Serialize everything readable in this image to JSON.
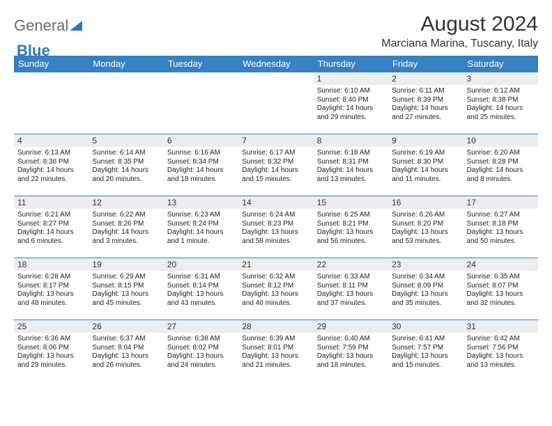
{
  "brand": {
    "part1": "General",
    "part2": "Blue"
  },
  "title": "August 2024",
  "location": "Marciana Marina, Tuscany, Italy",
  "colors": {
    "header_bg": "#3681c2",
    "header_text": "#ffffff",
    "daynum_bg": "#ededed",
    "border": "#3681c2"
  },
  "weekday_labels": [
    "Sunday",
    "Monday",
    "Tuesday",
    "Wednesday",
    "Thursday",
    "Friday",
    "Saturday"
  ],
  "weeks": [
    [
      {
        "n": "",
        "sr": "",
        "ss": "",
        "dl": ""
      },
      {
        "n": "",
        "sr": "",
        "ss": "",
        "dl": ""
      },
      {
        "n": "",
        "sr": "",
        "ss": "",
        "dl": ""
      },
      {
        "n": "",
        "sr": "",
        "ss": "",
        "dl": ""
      },
      {
        "n": "1",
        "sr": "Sunrise: 6:10 AM",
        "ss": "Sunset: 8:40 PM",
        "dl": "Daylight: 14 hours and 29 minutes."
      },
      {
        "n": "2",
        "sr": "Sunrise: 6:11 AM",
        "ss": "Sunset: 8:39 PM",
        "dl": "Daylight: 14 hours and 27 minutes."
      },
      {
        "n": "3",
        "sr": "Sunrise: 6:12 AM",
        "ss": "Sunset: 8:38 PM",
        "dl": "Daylight: 14 hours and 25 minutes."
      }
    ],
    [
      {
        "n": "4",
        "sr": "Sunrise: 6:13 AM",
        "ss": "Sunset: 8:36 PM",
        "dl": "Daylight: 14 hours and 22 minutes."
      },
      {
        "n": "5",
        "sr": "Sunrise: 6:14 AM",
        "ss": "Sunset: 8:35 PM",
        "dl": "Daylight: 14 hours and 20 minutes."
      },
      {
        "n": "6",
        "sr": "Sunrise: 6:16 AM",
        "ss": "Sunset: 8:34 PM",
        "dl": "Daylight: 14 hours and 18 minutes."
      },
      {
        "n": "7",
        "sr": "Sunrise: 6:17 AM",
        "ss": "Sunset: 8:32 PM",
        "dl": "Daylight: 14 hours and 15 minutes."
      },
      {
        "n": "8",
        "sr": "Sunrise: 6:18 AM",
        "ss": "Sunset: 8:31 PM",
        "dl": "Daylight: 14 hours and 13 minutes."
      },
      {
        "n": "9",
        "sr": "Sunrise: 6:19 AM",
        "ss": "Sunset: 8:30 PM",
        "dl": "Daylight: 14 hours and 11 minutes."
      },
      {
        "n": "10",
        "sr": "Sunrise: 6:20 AM",
        "ss": "Sunset: 8:28 PM",
        "dl": "Daylight: 14 hours and 8 minutes."
      }
    ],
    [
      {
        "n": "11",
        "sr": "Sunrise: 6:21 AM",
        "ss": "Sunset: 8:27 PM",
        "dl": "Daylight: 14 hours and 6 minutes."
      },
      {
        "n": "12",
        "sr": "Sunrise: 6:22 AM",
        "ss": "Sunset: 8:26 PM",
        "dl": "Daylight: 14 hours and 3 minutes."
      },
      {
        "n": "13",
        "sr": "Sunrise: 6:23 AM",
        "ss": "Sunset: 8:24 PM",
        "dl": "Daylight: 14 hours and 1 minute."
      },
      {
        "n": "14",
        "sr": "Sunrise: 6:24 AM",
        "ss": "Sunset: 8:23 PM",
        "dl": "Daylight: 13 hours and 58 minutes."
      },
      {
        "n": "15",
        "sr": "Sunrise: 6:25 AM",
        "ss": "Sunset: 8:21 PM",
        "dl": "Daylight: 13 hours and 56 minutes."
      },
      {
        "n": "16",
        "sr": "Sunrise: 6:26 AM",
        "ss": "Sunset: 8:20 PM",
        "dl": "Daylight: 13 hours and 53 minutes."
      },
      {
        "n": "17",
        "sr": "Sunrise: 6:27 AM",
        "ss": "Sunset: 8:18 PM",
        "dl": "Daylight: 13 hours and 50 minutes."
      }
    ],
    [
      {
        "n": "18",
        "sr": "Sunrise: 6:28 AM",
        "ss": "Sunset: 8:17 PM",
        "dl": "Daylight: 13 hours and 48 minutes."
      },
      {
        "n": "19",
        "sr": "Sunrise: 6:29 AM",
        "ss": "Sunset: 8:15 PM",
        "dl": "Daylight: 13 hours and 45 minutes."
      },
      {
        "n": "20",
        "sr": "Sunrise: 6:31 AM",
        "ss": "Sunset: 8:14 PM",
        "dl": "Daylight: 13 hours and 43 minutes."
      },
      {
        "n": "21",
        "sr": "Sunrise: 6:32 AM",
        "ss": "Sunset: 8:12 PM",
        "dl": "Daylight: 13 hours and 40 minutes."
      },
      {
        "n": "22",
        "sr": "Sunrise: 6:33 AM",
        "ss": "Sunset: 8:11 PM",
        "dl": "Daylight: 13 hours and 37 minutes."
      },
      {
        "n": "23",
        "sr": "Sunrise: 6:34 AM",
        "ss": "Sunset: 8:09 PM",
        "dl": "Daylight: 13 hours and 35 minutes."
      },
      {
        "n": "24",
        "sr": "Sunrise: 6:35 AM",
        "ss": "Sunset: 8:07 PM",
        "dl": "Daylight: 13 hours and 32 minutes."
      }
    ],
    [
      {
        "n": "25",
        "sr": "Sunrise: 6:36 AM",
        "ss": "Sunset: 8:06 PM",
        "dl": "Daylight: 13 hours and 29 minutes."
      },
      {
        "n": "26",
        "sr": "Sunrise: 6:37 AM",
        "ss": "Sunset: 8:04 PM",
        "dl": "Daylight: 13 hours and 26 minutes."
      },
      {
        "n": "27",
        "sr": "Sunrise: 6:38 AM",
        "ss": "Sunset: 8:02 PM",
        "dl": "Daylight: 13 hours and 24 minutes."
      },
      {
        "n": "28",
        "sr": "Sunrise: 6:39 AM",
        "ss": "Sunset: 8:01 PM",
        "dl": "Daylight: 13 hours and 21 minutes."
      },
      {
        "n": "29",
        "sr": "Sunrise: 6:40 AM",
        "ss": "Sunset: 7:59 PM",
        "dl": "Daylight: 13 hours and 18 minutes."
      },
      {
        "n": "30",
        "sr": "Sunrise: 6:41 AM",
        "ss": "Sunset: 7:57 PM",
        "dl": "Daylight: 13 hours and 15 minutes."
      },
      {
        "n": "31",
        "sr": "Sunrise: 6:42 AM",
        "ss": "Sunset: 7:56 PM",
        "dl": "Daylight: 13 hours and 13 minutes."
      }
    ]
  ]
}
